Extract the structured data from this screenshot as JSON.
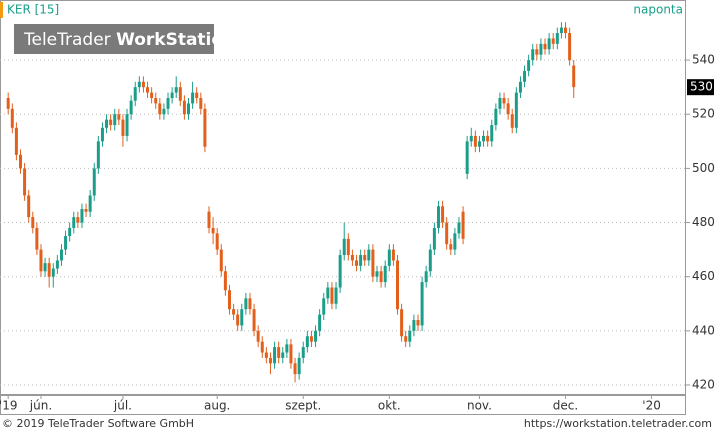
{
  "chart_data": {
    "type": "candlestick",
    "symbol": "KER [15]",
    "period": "naponta",
    "watermark": {
      "brand": "TeleTrader",
      "product": "WorkStation"
    },
    "copyright": "© 2019 TeleTrader Software GmbH",
    "url": "https://workstation.teletrader.com",
    "last_price": 530,
    "up_color": "#1a9e8a",
    "down_color": "#e2601c",
    "xlim": [
      -2,
      165.4
    ],
    "xticks": [
      {
        "value": 0,
        "label": "'19"
      },
      {
        "value": 8,
        "label": "jún."
      },
      {
        "value": 28,
        "label": "júl."
      },
      {
        "value": 51,
        "label": "aug."
      },
      {
        "value": 72,
        "label": "szept."
      },
      {
        "value": 93,
        "label": "okt."
      },
      {
        "value": 115,
        "label": "nov."
      },
      {
        "value": 136,
        "label": "dec."
      },
      {
        "value": 157,
        "label": "'20"
      }
    ],
    "ylim": [
      416.3,
      562.2
    ],
    "yticks": [
      420,
      440,
      460,
      480,
      500,
      520,
      540
    ],
    "grid": true,
    "open": [
      526,
      522,
      515,
      505,
      500,
      490,
      482,
      478,
      470,
      462,
      465,
      460,
      463,
      466,
      470,
      475,
      478,
      482,
      480,
      485,
      484,
      490,
      500,
      510,
      515,
      518,
      516,
      520,
      518,
      512,
      520,
      525,
      530,
      532,
      530,
      528,
      526,
      524,
      520,
      522,
      526,
      528,
      530,
      525,
      520,
      524,
      528,
      526,
      522,
      484,
      478,
      476,
      470,
      462,
      455,
      448,
      446,
      442,
      448,
      452,
      448,
      440,
      436,
      432,
      430,
      428,
      434,
      430,
      432,
      435,
      428,
      424,
      430,
      434,
      438,
      436,
      440,
      446,
      452,
      456,
      450,
      456,
      468,
      474,
      468,
      466,
      464,
      468,
      466,
      470,
      460,
      462,
      458,
      464,
      470,
      466,
      448,
      438,
      436,
      440,
      444,
      442,
      458,
      462,
      470,
      478,
      486,
      480,
      472,
      470,
      476,
      484,
      498,
      510,
      512,
      508,
      510,
      512,
      510,
      516,
      522,
      526,
      524,
      520,
      515,
      528,
      532,
      536,
      540,
      544,
      542,
      546,
      544,
      548,
      546,
      550,
      552,
      550,
      538
    ],
    "high": [
      528,
      524,
      517,
      507,
      502,
      492,
      484,
      480,
      472,
      467,
      467,
      465,
      468,
      472,
      477,
      480,
      484,
      484,
      487,
      487,
      492,
      502,
      512,
      517,
      520,
      520,
      522,
      522,
      520,
      522,
      527,
      532,
      534,
      534,
      532,
      530,
      528,
      526,
      524,
      528,
      530,
      534,
      532,
      527,
      526,
      532,
      530,
      528,
      524,
      486,
      482,
      478,
      472,
      464,
      457,
      450,
      448,
      450,
      454,
      454,
      450,
      442,
      438,
      434,
      432,
      436,
      436,
      434,
      437,
      437,
      430,
      432,
      436,
      440,
      440,
      442,
      448,
      454,
      458,
      458,
      458,
      470,
      480,
      476,
      470,
      468,
      470,
      470,
      472,
      472,
      464,
      464,
      466,
      472,
      472,
      468,
      450,
      440,
      442,
      446,
      446,
      460,
      464,
      472,
      480,
      488,
      488,
      482,
      474,
      478,
      482,
      486,
      512,
      515,
      514,
      512,
      514,
      514,
      518,
      524,
      528,
      528,
      526,
      522,
      530,
      534,
      538,
      542,
      546,
      546,
      548,
      548,
      550,
      550,
      552,
      554,
      554,
      552,
      540
    ],
    "low": [
      520,
      513,
      503,
      498,
      488,
      480,
      476,
      468,
      460,
      460,
      456,
      456,
      461,
      464,
      468,
      473,
      476,
      478,
      478,
      482,
      482,
      488,
      498,
      508,
      513,
      514,
      514,
      516,
      508,
      510,
      518,
      523,
      528,
      528,
      526,
      524,
      522,
      518,
      518,
      520,
      524,
      526,
      523,
      518,
      518,
      522,
      524,
      520,
      506,
      476,
      472,
      468,
      460,
      453,
      446,
      444,
      440,
      440,
      446,
      446,
      438,
      434,
      430,
      428,
      424,
      426,
      428,
      428,
      430,
      426,
      421,
      422,
      428,
      432,
      434,
      434,
      438,
      444,
      450,
      448,
      448,
      454,
      466,
      466,
      464,
      462,
      462,
      464,
      464,
      458,
      458,
      456,
      456,
      462,
      464,
      446,
      436,
      434,
      434,
      438,
      440,
      440,
      456,
      460,
      468,
      476,
      478,
      470,
      468,
      468,
      474,
      472,
      496,
      508,
      506,
      506,
      508,
      508,
      508,
      514,
      520,
      522,
      518,
      513,
      513,
      526,
      530,
      534,
      538,
      540,
      540,
      542,
      542,
      544,
      544,
      548,
      548,
      538,
      526
    ],
    "close": [
      522,
      515,
      505,
      500,
      490,
      482,
      478,
      470,
      462,
      465,
      460,
      463,
      466,
      470,
      475,
      478,
      482,
      480,
      485,
      484,
      490,
      500,
      510,
      515,
      518,
      516,
      520,
      518,
      512,
      520,
      525,
      530,
      532,
      530,
      528,
      526,
      524,
      520,
      522,
      526,
      528,
      530,
      525,
      520,
      524,
      528,
      526,
      522,
      508,
      478,
      476,
      470,
      462,
      455,
      448,
      446,
      442,
      448,
      452,
      448,
      440,
      436,
      432,
      430,
      428,
      434,
      430,
      432,
      435,
      428,
      424,
      430,
      434,
      438,
      436,
      440,
      446,
      452,
      456,
      450,
      456,
      468,
      474,
      468,
      466,
      464,
      468,
      466,
      470,
      460,
      462,
      458,
      464,
      470,
      466,
      448,
      438,
      436,
      440,
      444,
      442,
      458,
      462,
      470,
      478,
      486,
      480,
      472,
      470,
      476,
      480,
      474,
      510,
      512,
      508,
      510,
      512,
      510,
      516,
      522,
      526,
      524,
      520,
      515,
      528,
      532,
      536,
      540,
      544,
      542,
      546,
      544,
      548,
      546,
      550,
      552,
      550,
      540,
      530
    ]
  }
}
